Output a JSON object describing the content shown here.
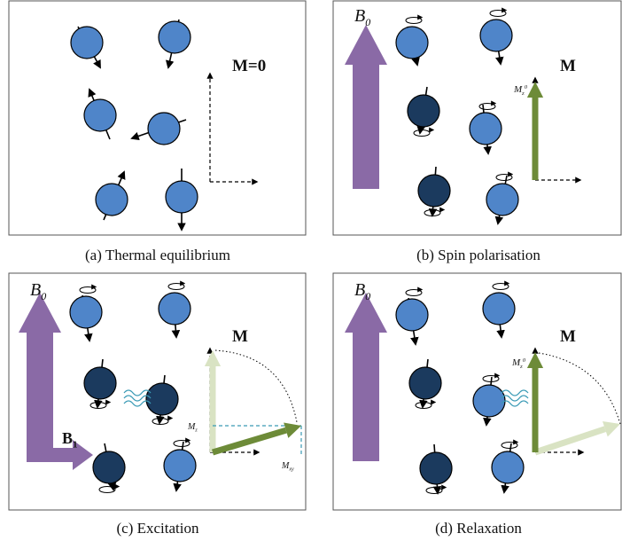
{
  "panels": [
    {
      "caption": "(a) Thermal equilibrium",
      "labels": [
        {
          "main": "M=0"
        }
      ]
    },
    {
      "caption": "(b) Spin polarisation",
      "labels": [
        {
          "main": "B",
          "sub": "0"
        },
        {
          "main": "M"
        },
        {
          "main": "M",
          "sub": "z",
          "sup": "0"
        }
      ]
    },
    {
      "caption": "(c) Excitation",
      "labels": [
        {
          "main": "B",
          "sub": "0"
        },
        {
          "main": "B",
          "sub": "1"
        },
        {
          "main": "M"
        },
        {
          "main": "M",
          "sub": "z"
        },
        {
          "main": "M",
          "sub": "xy"
        }
      ]
    },
    {
      "caption": "(d) Relaxation",
      "labels": [
        {
          "main": "B",
          "sub": "0"
        },
        {
          "main": "M"
        },
        {
          "main": "M",
          "sub": "z",
          "sup": "0"
        }
      ]
    }
  ]
}
